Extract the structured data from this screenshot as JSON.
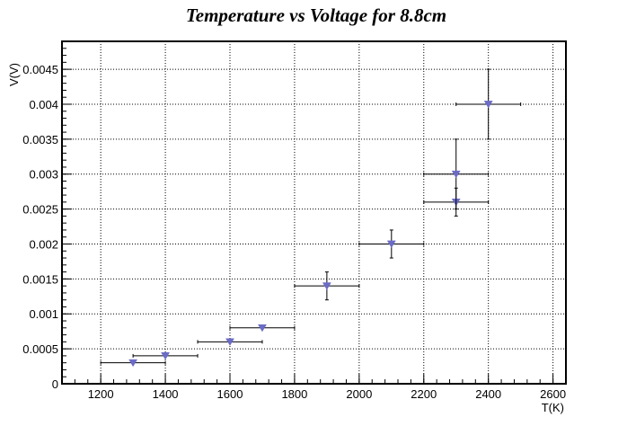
{
  "chart_data": {
    "type": "scatter",
    "title": "Temperature vs Voltage for 8.8cm",
    "xlabel": "T(K)",
    "ylabel": "V(V)",
    "xlim": [
      1080,
      2640
    ],
    "ylim": [
      0,
      0.0049
    ],
    "x_ticks": [
      1200,
      1400,
      1600,
      1800,
      2000,
      2200,
      2400,
      2600
    ],
    "x_tick_labels": [
      "1200",
      "1400",
      "1600",
      "1800",
      "2000",
      "2200",
      "2400",
      "2600"
    ],
    "y_ticks": [
      0,
      0.0005,
      0.001,
      0.0015,
      0.002,
      0.0025,
      0.003,
      0.0035,
      0.004,
      0.0045
    ],
    "y_tick_labels": [
      "0",
      "0.0005",
      "0.001",
      "0.0015",
      "0.002",
      "0.0025",
      "0.003",
      "0.0035",
      "0.004",
      "0.0045"
    ],
    "grid": true,
    "marker": "triangle-down",
    "marker_color": "#6b6bc7",
    "points": [
      {
        "x": 1300,
        "y": 0.0003,
        "xerr": 100,
        "yerr": 0
      },
      {
        "x": 1400,
        "y": 0.0004,
        "xerr": 100,
        "yerr": 0
      },
      {
        "x": 1600,
        "y": 0.0006,
        "xerr": 100,
        "yerr": 0
      },
      {
        "x": 1700,
        "y": 0.0008,
        "xerr": 100,
        "yerr": 0
      },
      {
        "x": 1900,
        "y": 0.0014,
        "xerr": 100,
        "yerr": 0.0002
      },
      {
        "x": 2100,
        "y": 0.002,
        "xerr": 100,
        "yerr": 0.0002
      },
      {
        "x": 2300,
        "y": 0.0026,
        "xerr": 100,
        "yerr": 0.0002
      },
      {
        "x": 2300,
        "y": 0.003,
        "xerr": 100,
        "yerr": 0.0005
      },
      {
        "x": 2400,
        "y": 0.004,
        "xerr": 100,
        "yerr": 0.0005
      }
    ]
  }
}
